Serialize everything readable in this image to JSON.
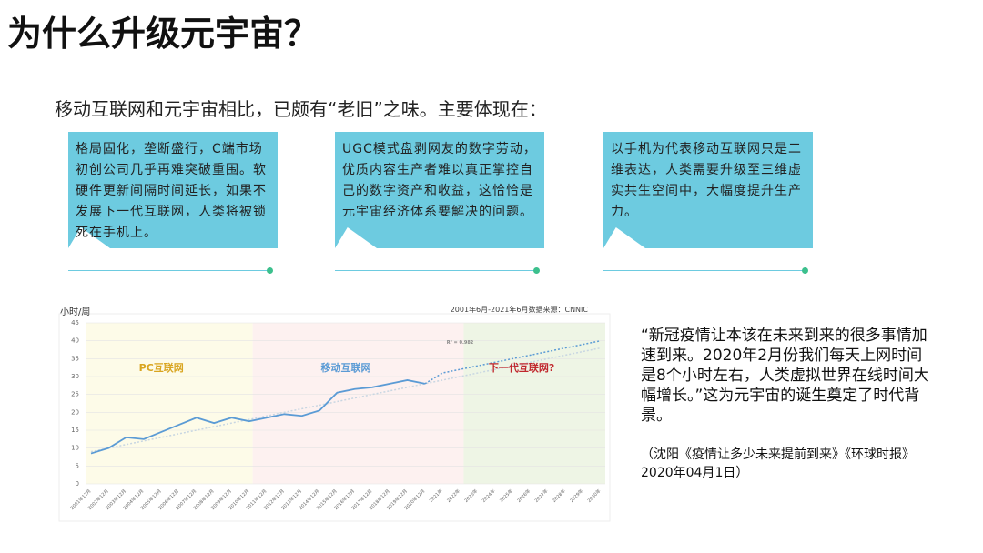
{
  "title": "为什么升级元宇宙？",
  "subtitle": "移动互联网和元宇宙相比，已颇有“老旧”之味。主要体现在：",
  "cards": [
    "格局固化，垄断盛行，C端市场初创公司几乎再难突破重围。软硬件更新间隔时间延长，如果不发展下一代互联网，人类将被锁死在手机上。",
    "UGC模式盘剥网友的数字劳动，优质内容生产者难以真正掌控自己的数字资产和收益，这恰恰是元宇宙经济体系要解决的问题。",
    "以手机为代表移动互联网只是二维表达，人类需要升级至三维虚实共生空间中，大幅度提升生产力。"
  ],
  "quote": "“新冠疫情让本该在未来到来的很多事情加速到来。2020年2月份我们每天上网时间是8个小时左右，人类虚拟世界在线时间大幅增长。”这为元宇宙的诞生奠定了时代背景。",
  "citation": "（沈阳《疫情让多少未来提前到来》《环球时报》 2020年04月1日）",
  "chart_data": {
    "type": "line",
    "y_label": "小时/周",
    "source": "2001年6月-2021年6月数据来源：CNNIC",
    "annotations": [
      "PC互联网",
      "移动互联网",
      "下一代互联网?",
      "R² = 0.982"
    ],
    "categories": [
      "2001年12月",
      "2002年12月",
      "2003年12月",
      "2004年12月",
      "2005年12月",
      "2006年12月",
      "2007年12月",
      "2008年12月",
      "2009年12月",
      "2010年12月",
      "2011年12月",
      "2012年12月",
      "2013年12月",
      "2014年12月",
      "2015年12月",
      "2016年12月",
      "2017年12月",
      "2018年12月",
      "2019年12月",
      "2020年12月",
      "2021年",
      "2022年",
      "2023年",
      "2024年",
      "2025年",
      "2026年",
      "2027年",
      "2028年",
      "2029年",
      "2030年"
    ],
    "series": [
      {
        "color": "#5b9bd5",
        "style": "solid",
        "values": [
          8.5,
          10,
          13,
          12.5,
          14.5,
          16.5,
          18.5,
          17,
          18.5,
          17.5,
          18.5,
          19.5,
          19,
          20.5,
          25.5,
          26.5,
          27,
          28,
          29,
          28,
          null,
          null,
          null,
          null,
          null,
          null,
          null,
          null,
          null,
          null
        ]
      },
      {
        "color": "#5b9bd5",
        "style": "dotted",
        "values": [
          null,
          null,
          null,
          null,
          null,
          null,
          null,
          null,
          null,
          null,
          null,
          null,
          null,
          null,
          null,
          null,
          null,
          null,
          null,
          28,
          31,
          32,
          33,
          34,
          35,
          36,
          37,
          38,
          39,
          40
        ]
      },
      {
        "color": "#c8d6e2",
        "style": "dotted",
        "values": [
          9,
          10,
          11,
          12,
          13,
          14,
          15,
          16,
          17,
          18,
          19,
          20,
          21,
          22,
          23,
          24,
          25,
          26,
          27,
          28,
          29,
          30,
          31,
          32,
          33,
          34,
          35,
          36,
          37,
          38
        ]
      }
    ],
    "ylim": [
      0,
      45
    ],
    "yticks": [
      0,
      5,
      10,
      15,
      20,
      25,
      30,
      35,
      40,
      45
    ],
    "grid": true
  }
}
